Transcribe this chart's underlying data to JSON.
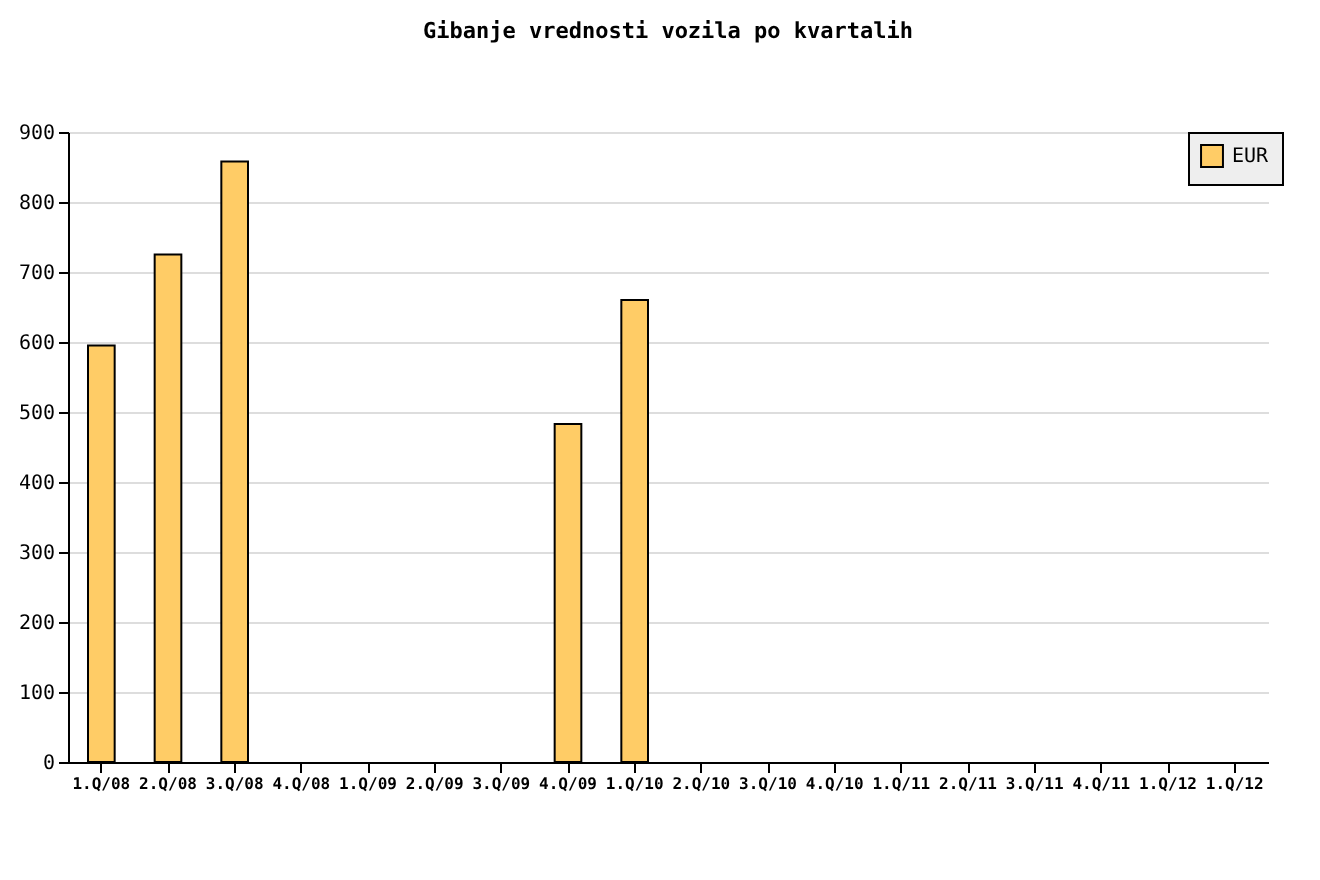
{
  "chart_data": {
    "type": "bar",
    "title": "Gibanje vrednosti vozila po kvartalih",
    "categories": [
      "1.Q/08",
      "2.Q/08",
      "3.Q/08",
      "4.Q/08",
      "1.Q/09",
      "2.Q/09",
      "3.Q/09",
      "4.Q/09",
      "1.Q/10",
      "2.Q/10",
      "3.Q/10",
      "4.Q/10",
      "1.Q/11",
      "2.Q/11",
      "3.Q/11",
      "4.Q/11",
      "1.Q/12",
      "1.Q/12"
    ],
    "series": [
      {
        "name": "EUR",
        "color": "#ffcc66",
        "values": [
          595,
          725,
          858,
          null,
          null,
          null,
          null,
          483,
          660,
          null,
          null,
          null,
          null,
          null,
          null,
          null,
          null,
          null
        ]
      }
    ],
    "ylim": [
      0,
      900
    ],
    "yticks": [
      0,
      100,
      200,
      300,
      400,
      500,
      600,
      700,
      800,
      900
    ],
    "grid": "y",
    "legend": "top right"
  }
}
